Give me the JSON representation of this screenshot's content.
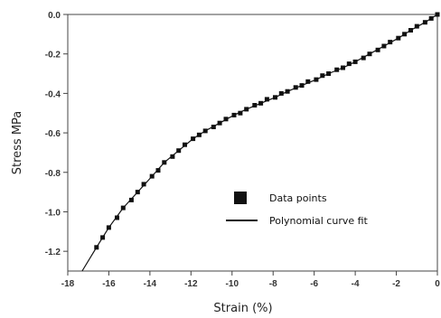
{
  "chart_data": {
    "type": "scatter",
    "title": "",
    "xlabel": "Strain (%)",
    "ylabel": "Stress MPa",
    "xlim": [
      -18,
      0
    ],
    "ylim": [
      -1.3,
      0.0
    ],
    "x_ticks": [
      -18,
      -16,
      -14,
      -12,
      -10,
      -8,
      -6,
      -4,
      -2,
      0
    ],
    "x_tick_labels": [
      "-18",
      "-16",
      "-14",
      "-12",
      "-10",
      "-8",
      "-6",
      "-4",
      "-2",
      "0"
    ],
    "y_ticks": [
      0.0,
      -0.2,
      -0.4,
      -0.6,
      -0.8,
      -1.0,
      -1.2
    ],
    "y_tick_labels": [
      "0.0",
      "-0.2",
      "-0.4",
      "-0.6",
      "-0.8",
      "-1.0",
      "-1.2"
    ],
    "grid": false,
    "legend_position": "lower-right",
    "series": [
      {
        "name": "Data points",
        "kind": "markers",
        "marker": "square",
        "color": "#111111",
        "x": [
          -16.6,
          -16.3,
          -16.0,
          -15.6,
          -15.3,
          -14.9,
          -14.6,
          -14.3,
          -13.9,
          -13.6,
          -13.3,
          -12.9,
          -12.6,
          -12.3,
          -11.9,
          -11.6,
          -11.3,
          -10.9,
          -10.6,
          -10.3,
          -9.9,
          -9.6,
          -9.3,
          -8.9,
          -8.6,
          -8.3,
          -7.9,
          -7.6,
          -7.3,
          -6.9,
          -6.6,
          -6.3,
          -5.9,
          -5.6,
          -5.3,
          -4.9,
          -4.6,
          -4.3,
          -4.0,
          -3.6,
          -3.3,
          -2.9,
          -2.6,
          -2.3,
          -1.9,
          -1.6,
          -1.3,
          -1.0,
          -0.6,
          -0.3,
          0.0
        ],
        "y": [
          -1.18,
          -1.13,
          -1.08,
          -1.03,
          -0.98,
          -0.94,
          -0.9,
          -0.86,
          -0.82,
          -0.79,
          -0.75,
          -0.72,
          -0.69,
          -0.66,
          -0.63,
          -0.61,
          -0.59,
          -0.57,
          -0.55,
          -0.53,
          -0.51,
          -0.5,
          -0.48,
          -0.46,
          -0.45,
          -0.43,
          -0.42,
          -0.4,
          -0.39,
          -0.37,
          -0.36,
          -0.34,
          -0.33,
          -0.31,
          -0.3,
          -0.28,
          -0.27,
          -0.25,
          -0.24,
          -0.22,
          -0.2,
          -0.18,
          -0.16,
          -0.14,
          -0.12,
          -0.1,
          -0.08,
          -0.06,
          -0.04,
          -0.02,
          0.0
        ]
      },
      {
        "name": "Polynomial curve fit",
        "kind": "line",
        "color": "#111111",
        "x": [
          -17.3,
          -16.6,
          -16.0,
          -15.3,
          -14.6,
          -13.9,
          -13.3,
          -12.6,
          -11.9,
          -11.3,
          -10.6,
          -9.9,
          -9.3,
          -8.6,
          -7.9,
          -7.3,
          -6.6,
          -5.9,
          -5.3,
          -4.6,
          -4.0,
          -3.3,
          -2.6,
          -1.9,
          -1.3,
          -0.6,
          0.0
        ],
        "y": [
          -1.3,
          -1.18,
          -1.08,
          -0.98,
          -0.9,
          -0.82,
          -0.75,
          -0.69,
          -0.63,
          -0.59,
          -0.55,
          -0.51,
          -0.48,
          -0.45,
          -0.42,
          -0.39,
          -0.36,
          -0.33,
          -0.3,
          -0.27,
          -0.24,
          -0.2,
          -0.16,
          -0.12,
          -0.08,
          -0.04,
          0.0
        ]
      }
    ]
  }
}
